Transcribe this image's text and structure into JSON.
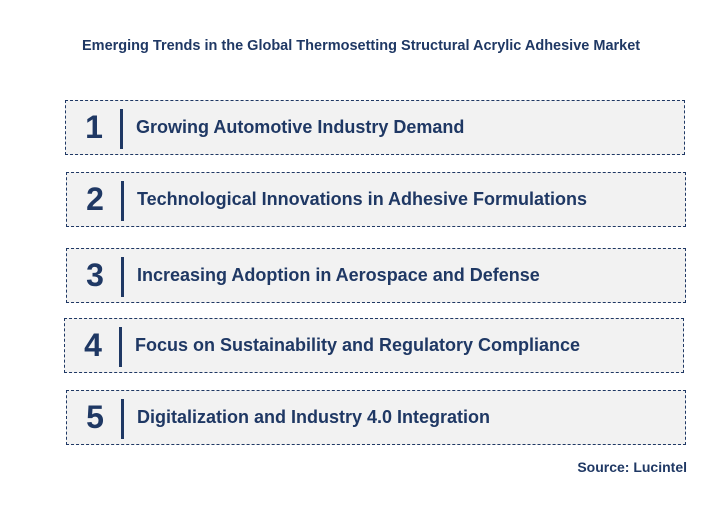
{
  "title": "Emerging Trends in the Global Thermosetting Structural Acrylic Adhesive Market",
  "trends": [
    {
      "number": "1",
      "label": "Growing Automotive Industry Demand"
    },
    {
      "number": "2",
      "label": "Technological Innovations in Adhesive Formulations"
    },
    {
      "number": "3",
      "label": "Increasing Adoption in Aerospace and Defense"
    },
    {
      "number": "4",
      "label": "Focus on Sustainability and Regulatory Compliance"
    },
    {
      "number": "5",
      "label": "Digitalization and Industry 4.0 Integration"
    }
  ],
  "source": "Source: Lucintel",
  "colors": {
    "text": "#1f3864",
    "row_background": "#f2f2f2",
    "border": "#1f3864"
  }
}
